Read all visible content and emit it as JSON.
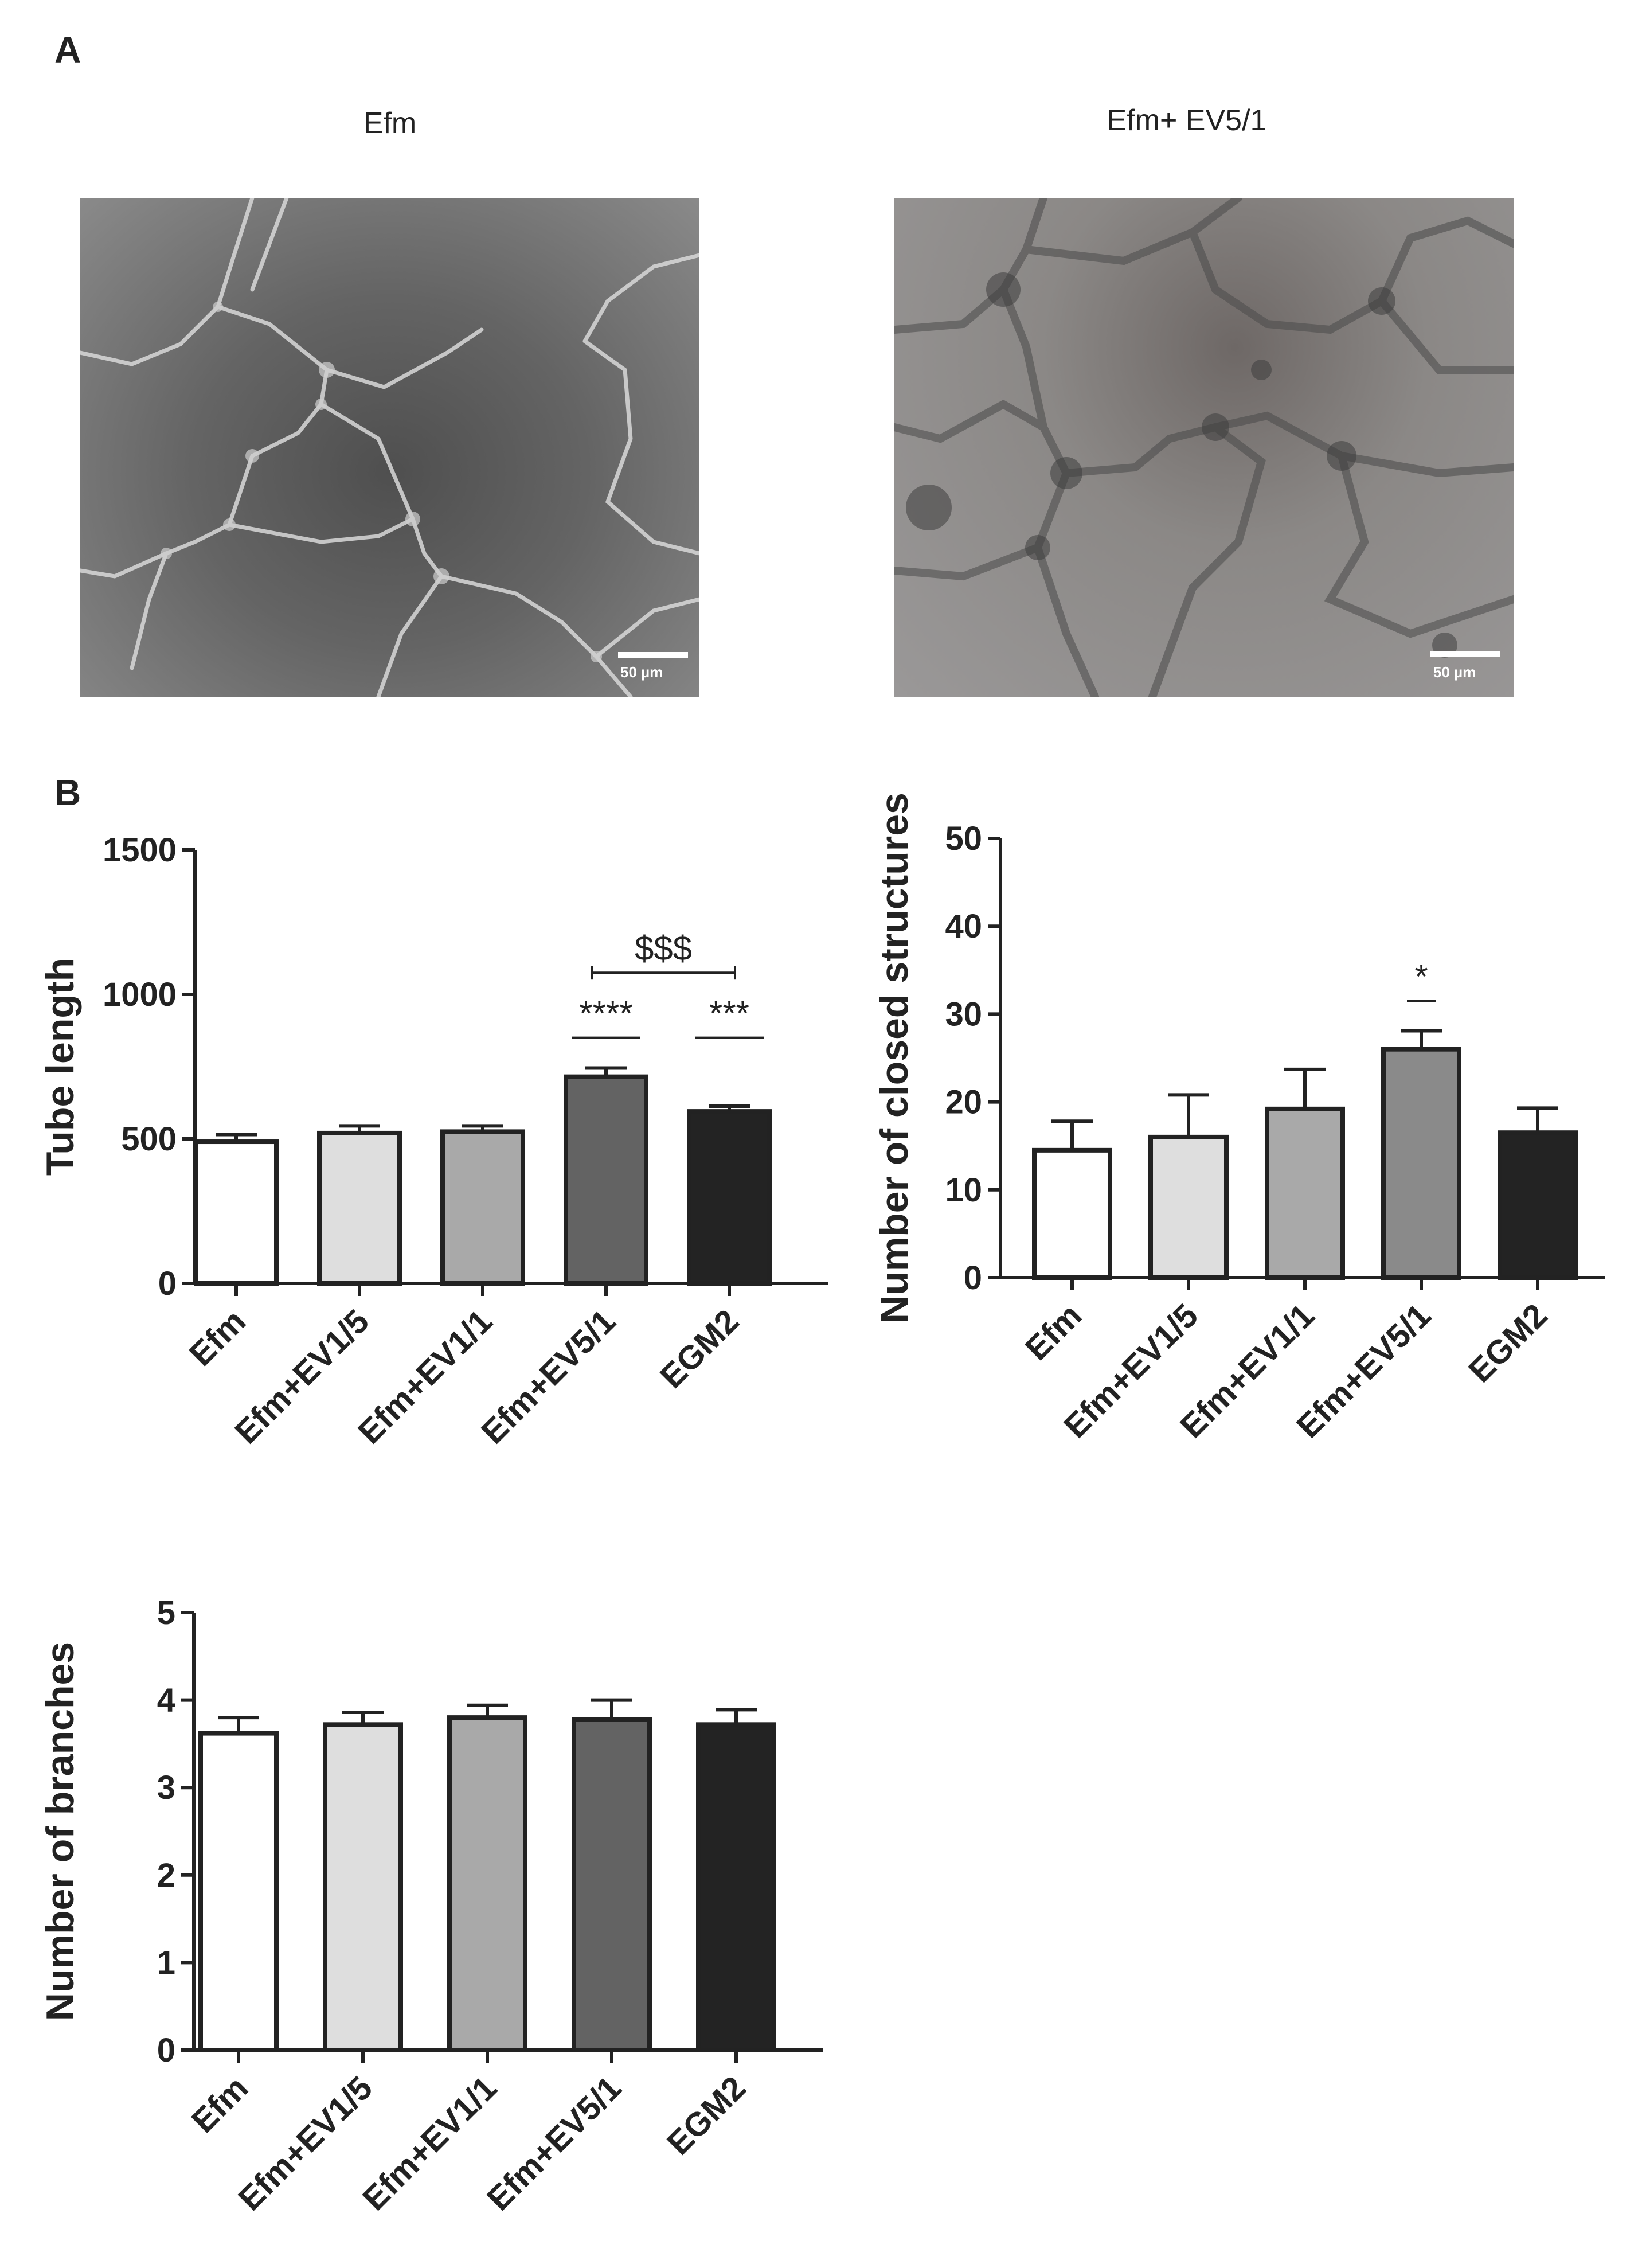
{
  "figure": {
    "panel_a_label": "A",
    "panel_b_label": "B"
  },
  "micrographs": [
    {
      "title": "Efm",
      "scale_label": "50 µm",
      "background": "#6f6f6f"
    },
    {
      "title": "Efm+ EV5/1",
      "scale_label": "50 µm",
      "background": "#8d8a88"
    }
  ],
  "chart_data": [
    {
      "type": "bar",
      "title": "",
      "xlabel": "",
      "ylabel": "Tube length",
      "categories": [
        "Efm",
        "Efm+EV1/5",
        "Efm+EV1/1",
        "Efm+EV5/1",
        "EGM2"
      ],
      "values": [
        490,
        520,
        525,
        715,
        595
      ],
      "errors": [
        25,
        25,
        20,
        30,
        18
      ],
      "ylim": [
        0,
        1500
      ],
      "yticks": [
        0,
        500,
        1000,
        1500
      ],
      "bar_colors": [
        "#ffffff",
        "#dedede",
        "#a9a9a9",
        "#636363",
        "#232323"
      ],
      "annotations": [
        {
          "text": "****",
          "from": 3,
          "to": 3,
          "y": 850
        },
        {
          "text": "***",
          "from": 4,
          "to": 4,
          "y": 850
        },
        {
          "text": "$$$",
          "from": 3,
          "to": 4,
          "y": 1075
        }
      ]
    },
    {
      "type": "bar",
      "title": "",
      "xlabel": "",
      "ylabel": "Number of closed structures",
      "categories": [
        "Efm",
        "Efm+EV1/5",
        "Efm+EV1/1",
        "Efm+EV5/1",
        "EGM2"
      ],
      "values": [
        14.5,
        16,
        19.2,
        26,
        16.5
      ],
      "errors": [
        3.3,
        4.8,
        4.5,
        2.1,
        2.8
      ],
      "ylim": [
        0,
        50
      ],
      "yticks": [
        0,
        10,
        20,
        30,
        40,
        50
      ],
      "bar_colors": [
        "#ffffff",
        "#dedede",
        "#a9a9a9",
        "#8a8a8a",
        "#232323"
      ],
      "annotations": [
        {
          "text": "*",
          "from": 3,
          "to": 3,
          "y": 31.5
        }
      ]
    },
    {
      "type": "bar",
      "title": "",
      "xlabel": "",
      "ylabel": "Number of branches",
      "categories": [
        "Efm",
        "Efm+EV1/5",
        "Efm+EV1/1",
        "Efm+EV5/1",
        "EGM2"
      ],
      "values": [
        3.62,
        3.72,
        3.8,
        3.78,
        3.72
      ],
      "errors": [
        0.18,
        0.14,
        0.14,
        0.22,
        0.17
      ],
      "ylim": [
        0,
        5
      ],
      "yticks": [
        0,
        1,
        2,
        3,
        4,
        5
      ],
      "bar_colors": [
        "#ffffff",
        "#dedede",
        "#a9a9a9",
        "#636363",
        "#232323"
      ],
      "annotations": []
    }
  ]
}
